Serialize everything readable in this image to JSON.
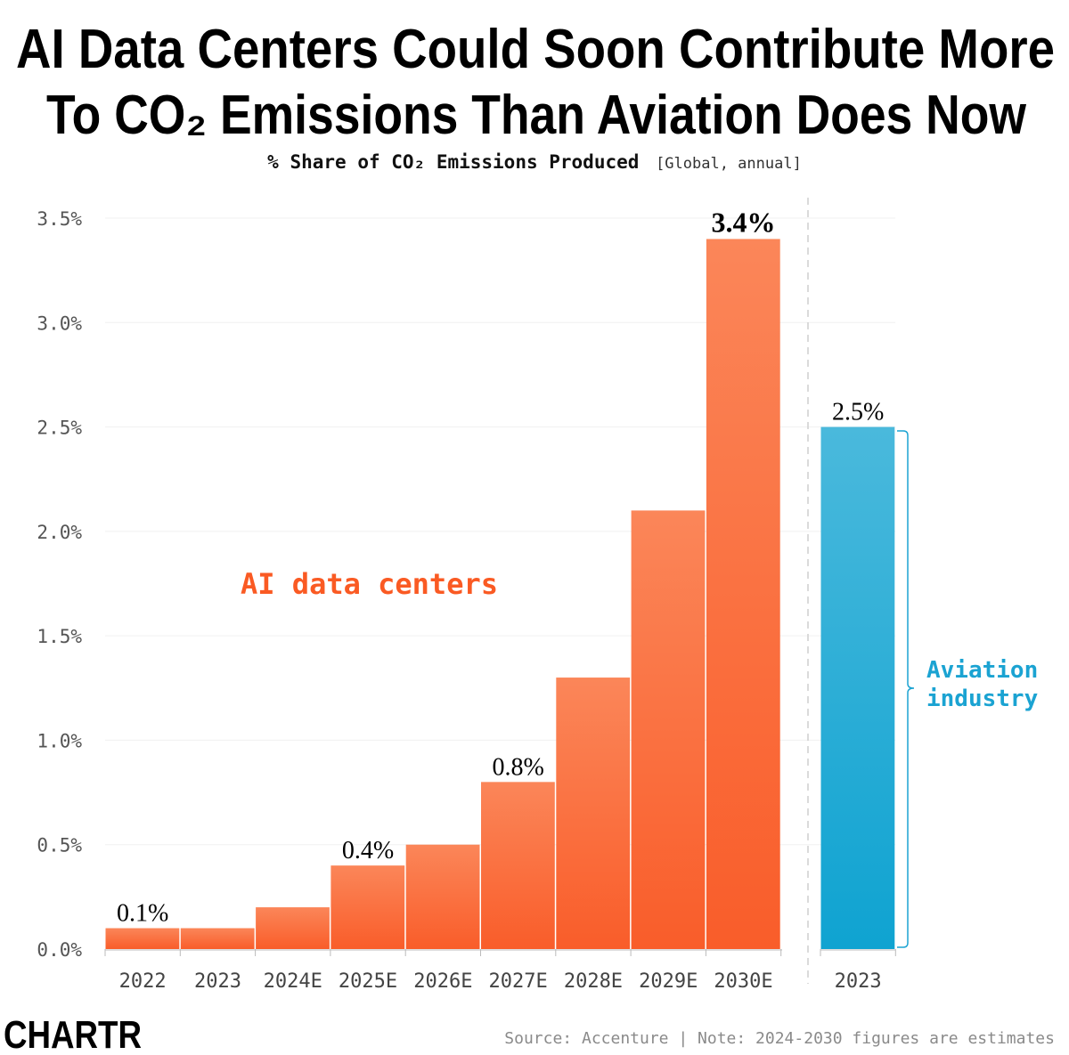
{
  "chart_data": {
    "type": "bar",
    "title_line1": "AI Data Centers Could Soon Contribute More",
    "title_line2": "To CO₂ Emissions Than Aviation Does Now",
    "subtitle": "% Share of CO₂ Emissions Produced",
    "subtitle_note": "[Global, annual]",
    "ylim": [
      0,
      3.5
    ],
    "yticks": [
      0,
      0.5,
      1.0,
      1.5,
      2.0,
      2.5,
      3.0,
      3.5
    ],
    "ytick_labels": [
      "0.0%",
      "0.5%",
      "1.0%",
      "1.5%",
      "2.0%",
      "2.5%",
      "3.0%",
      "3.5%"
    ],
    "grid": true,
    "series": [
      {
        "name": "AI data centers",
        "color_top": "#fb8659",
        "color_bottom": "#f95d2a",
        "label_color": "#fa5a23",
        "categories": [
          "2022",
          "2023",
          "2024E",
          "2025E",
          "2026E",
          "2027E",
          "2028E",
          "2029E",
          "2030E"
        ],
        "values": [
          0.1,
          0.1,
          0.2,
          0.4,
          0.5,
          0.8,
          1.3,
          2.1,
          3.4
        ],
        "data_labels": [
          "0.1%",
          null,
          null,
          "0.4%",
          null,
          "0.8%",
          null,
          null,
          "3.4%"
        ]
      },
      {
        "name": "Aviation industry",
        "name_lines": [
          "Aviation",
          "industry"
        ],
        "color_top": "#4ab9dc",
        "color_bottom": "#0fa3d1",
        "label_color": "#1ba3d2",
        "categories": [
          "2023"
        ],
        "values": [
          2.5
        ],
        "data_labels": [
          "2.5%"
        ]
      }
    ]
  },
  "footer": {
    "logo": "CHARTR",
    "source": "Source: Accenture | Note: 2024-2030 figures are estimates"
  }
}
